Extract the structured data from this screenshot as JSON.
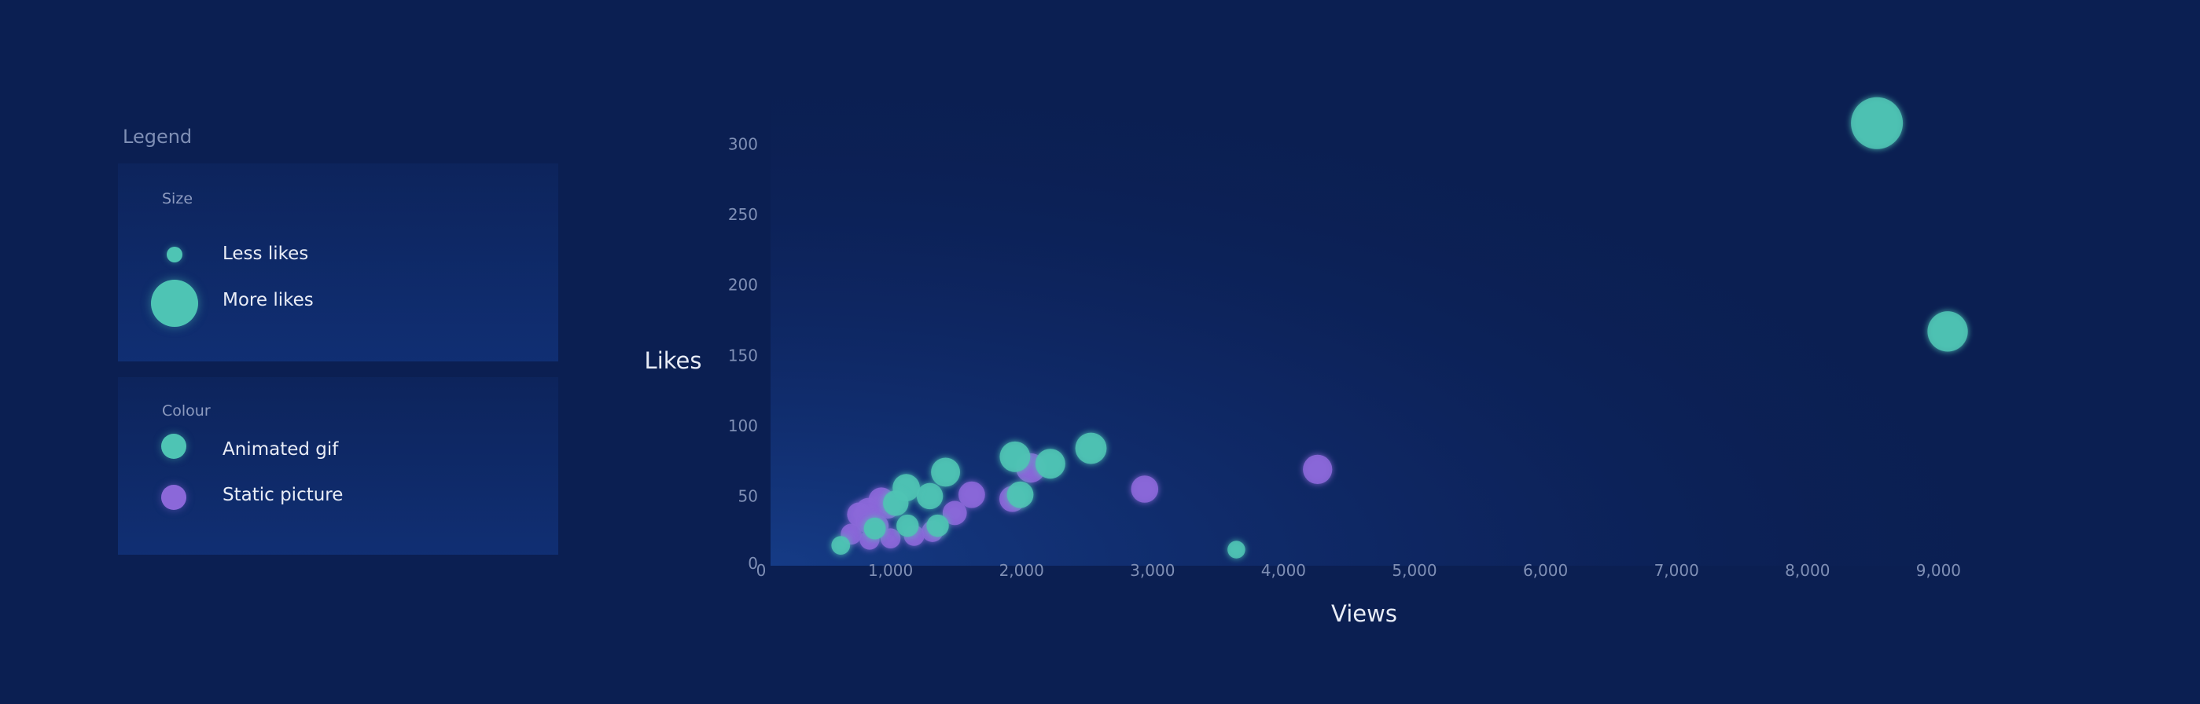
{
  "legend": {
    "title": "Legend",
    "size_section": {
      "title": "Size",
      "items": [
        {
          "label": "Less likes"
        },
        {
          "label": "More likes"
        }
      ]
    },
    "colour_section": {
      "title": "Colour",
      "items": [
        {
          "label": "Animated gif",
          "color": "#4ec4b4"
        },
        {
          "label": "Static picture",
          "color": "#8b68d9"
        }
      ]
    }
  },
  "colors": {
    "background": "#0b1f52",
    "plot_glow": "#16388a",
    "tick_text": "#7f8fb5",
    "axis_label_text": "#e8ecf6",
    "gif": "#4ec4b4",
    "static": "#8b68d9"
  },
  "chart_data": {
    "type": "scatter",
    "xlabel": "Views",
    "ylabel": "Likes",
    "xlim": [
      0,
      10000
    ],
    "ylim": [
      0,
      350
    ],
    "x_origin_label": "0",
    "y_origin_label": "0",
    "x_ticks": [
      "1,000",
      "2,000",
      "3,000",
      "4,000",
      "5,000",
      "6,000",
      "7,000",
      "8,000",
      "9,000"
    ],
    "x_tick_values": [
      1000,
      2000,
      3000,
      4000,
      5000,
      6000,
      7000,
      8000,
      9000
    ],
    "y_ticks": [
      "50",
      "100",
      "150",
      "200",
      "250",
      "300"
    ],
    "y_tick_values": [
      50,
      100,
      150,
      200,
      250,
      300
    ],
    "grid": false,
    "size_encodes": "Likes",
    "series": [
      {
        "name": "Animated gif",
        "points": [
          {
            "x": 8530,
            "y": 315
          },
          {
            "x": 9070,
            "y": 167
          },
          {
            "x": 2530,
            "y": 84
          },
          {
            "x": 2220,
            "y": 73
          },
          {
            "x": 1950,
            "y": 78
          },
          {
            "x": 1990,
            "y": 51
          },
          {
            "x": 1420,
            "y": 67
          },
          {
            "x": 1300,
            "y": 50
          },
          {
            "x": 1120,
            "y": 56
          },
          {
            "x": 1040,
            "y": 45
          },
          {
            "x": 1130,
            "y": 29
          },
          {
            "x": 1360,
            "y": 29
          },
          {
            "x": 880,
            "y": 27
          },
          {
            "x": 620,
            "y": 15
          },
          {
            "x": 3640,
            "y": 12
          }
        ]
      },
      {
        "name": "Static picture",
        "points": [
          {
            "x": 4260,
            "y": 69
          },
          {
            "x": 2940,
            "y": 55
          },
          {
            "x": 2070,
            "y": 70
          },
          {
            "x": 1930,
            "y": 48
          },
          {
            "x": 1620,
            "y": 51
          },
          {
            "x": 1490,
            "y": 38
          },
          {
            "x": 1320,
            "y": 25
          },
          {
            "x": 1180,
            "y": 22
          },
          {
            "x": 1000,
            "y": 20
          },
          {
            "x": 930,
            "y": 47
          },
          {
            "x": 980,
            "y": 43
          },
          {
            "x": 830,
            "y": 40
          },
          {
            "x": 760,
            "y": 37
          },
          {
            "x": 700,
            "y": 23
          },
          {
            "x": 840,
            "y": 19
          },
          {
            "x": 900,
            "y": 29
          },
          {
            "x": 820,
            "y": 32
          }
        ]
      }
    ]
  }
}
